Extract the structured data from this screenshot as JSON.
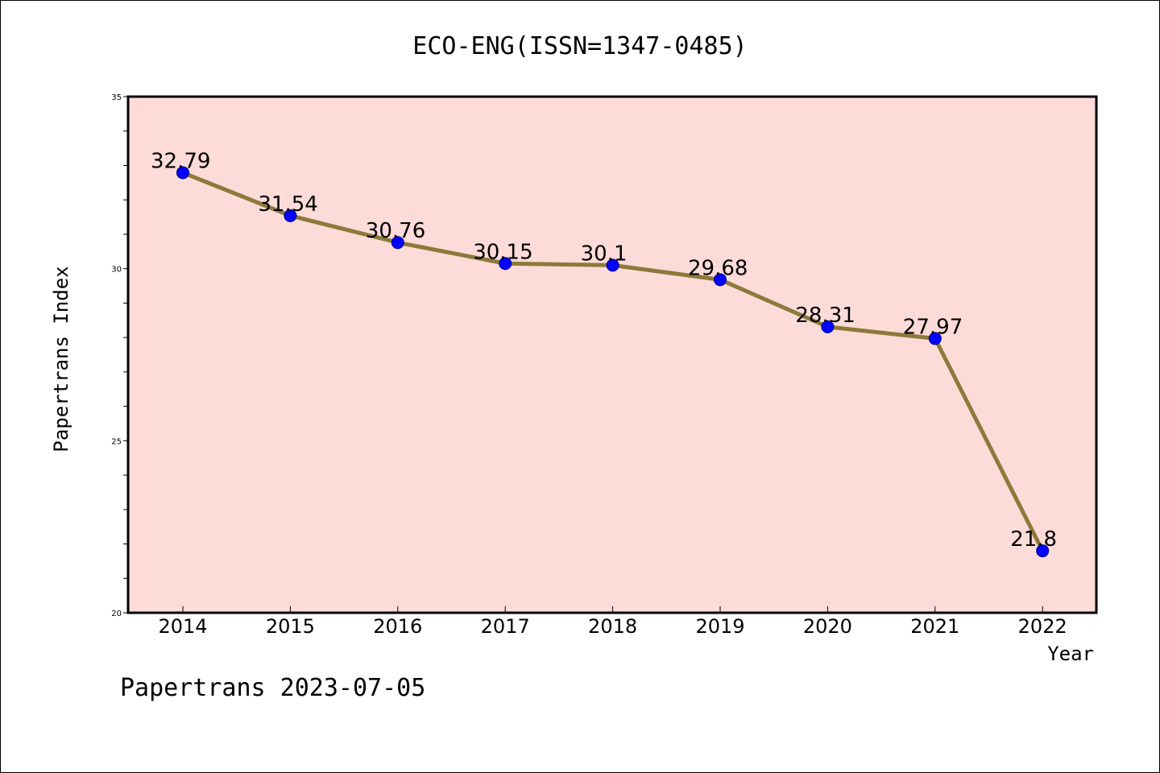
{
  "chart_data": {
    "type": "line",
    "title": "ECO-ENG(ISSN=1347-0485)",
    "xlabel": "Year",
    "ylabel": "Papertrans Index",
    "categories": [
      "2014",
      "2015",
      "2016",
      "2017",
      "2018",
      "2019",
      "2020",
      "2021",
      "2022"
    ],
    "series": [
      {
        "values": [
          32.79,
          31.54,
          30.76,
          30.15,
          30.1,
          29.68,
          28.31,
          27.97,
          21.8
        ],
        "labels": [
          "32.79",
          "31.54",
          "30.76",
          "30.15",
          "30.1",
          "29.68",
          "28.31",
          "27.97",
          "21.8"
        ]
      }
    ],
    "ylim": [
      20,
      35
    ],
    "yticks": [
      "20",
      "25",
      "30",
      "35"
    ],
    "grid": false,
    "plot_background": "#fddbd8",
    "line_color": "#8b7a3a",
    "marker_color": "#0000ff"
  },
  "footer_text": "Papertrans 2023-07-05"
}
